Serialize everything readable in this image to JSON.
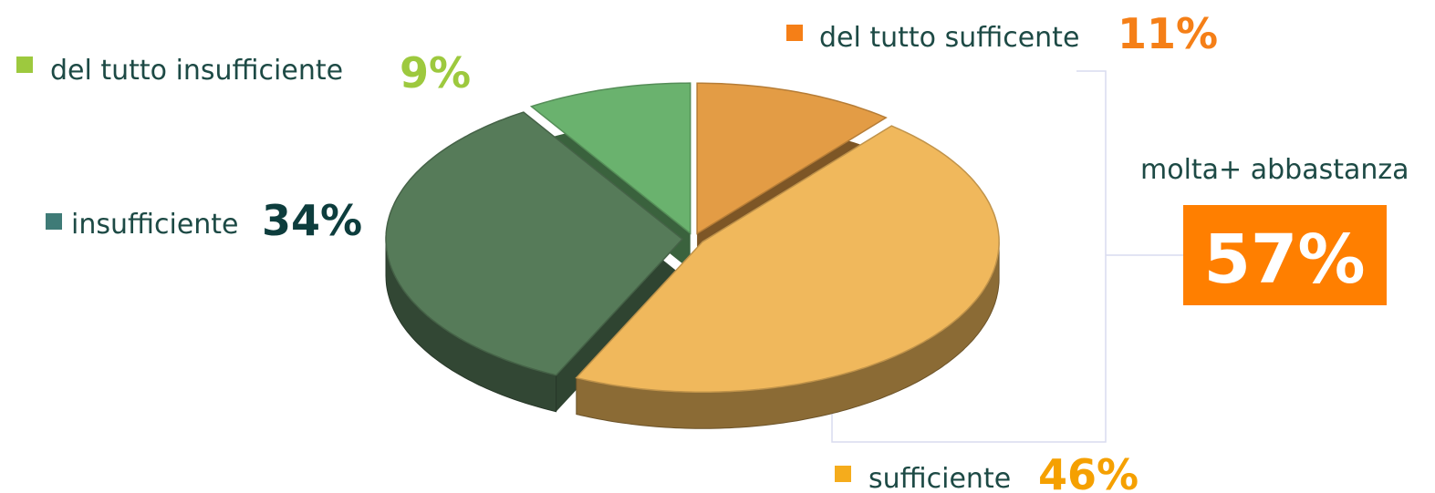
{
  "chart_data": {
    "type": "pie",
    "categories": [
      "del tutto sufficente",
      "sufficiente",
      "insufficiente",
      "del tutto insufficiente"
    ],
    "values": [
      11,
      46,
      34,
      9
    ],
    "value_labels": [
      "11%",
      "46%",
      "34%",
      "9%"
    ],
    "colors": [
      "#e39c45",
      "#f0b85c",
      "#567b59",
      "#6ab26e"
    ],
    "legend_colors": [
      "#f57f17",
      "#f5ac1c",
      "#3f7b77",
      "#9dc93e"
    ],
    "label_colors": [
      "#f57f17",
      "#f5a000",
      "#0d3d3d",
      "#9dc93e"
    ],
    "annotation": {
      "text": "molta+ abbastanza",
      "value": 57,
      "value_label": "57%"
    }
  }
}
